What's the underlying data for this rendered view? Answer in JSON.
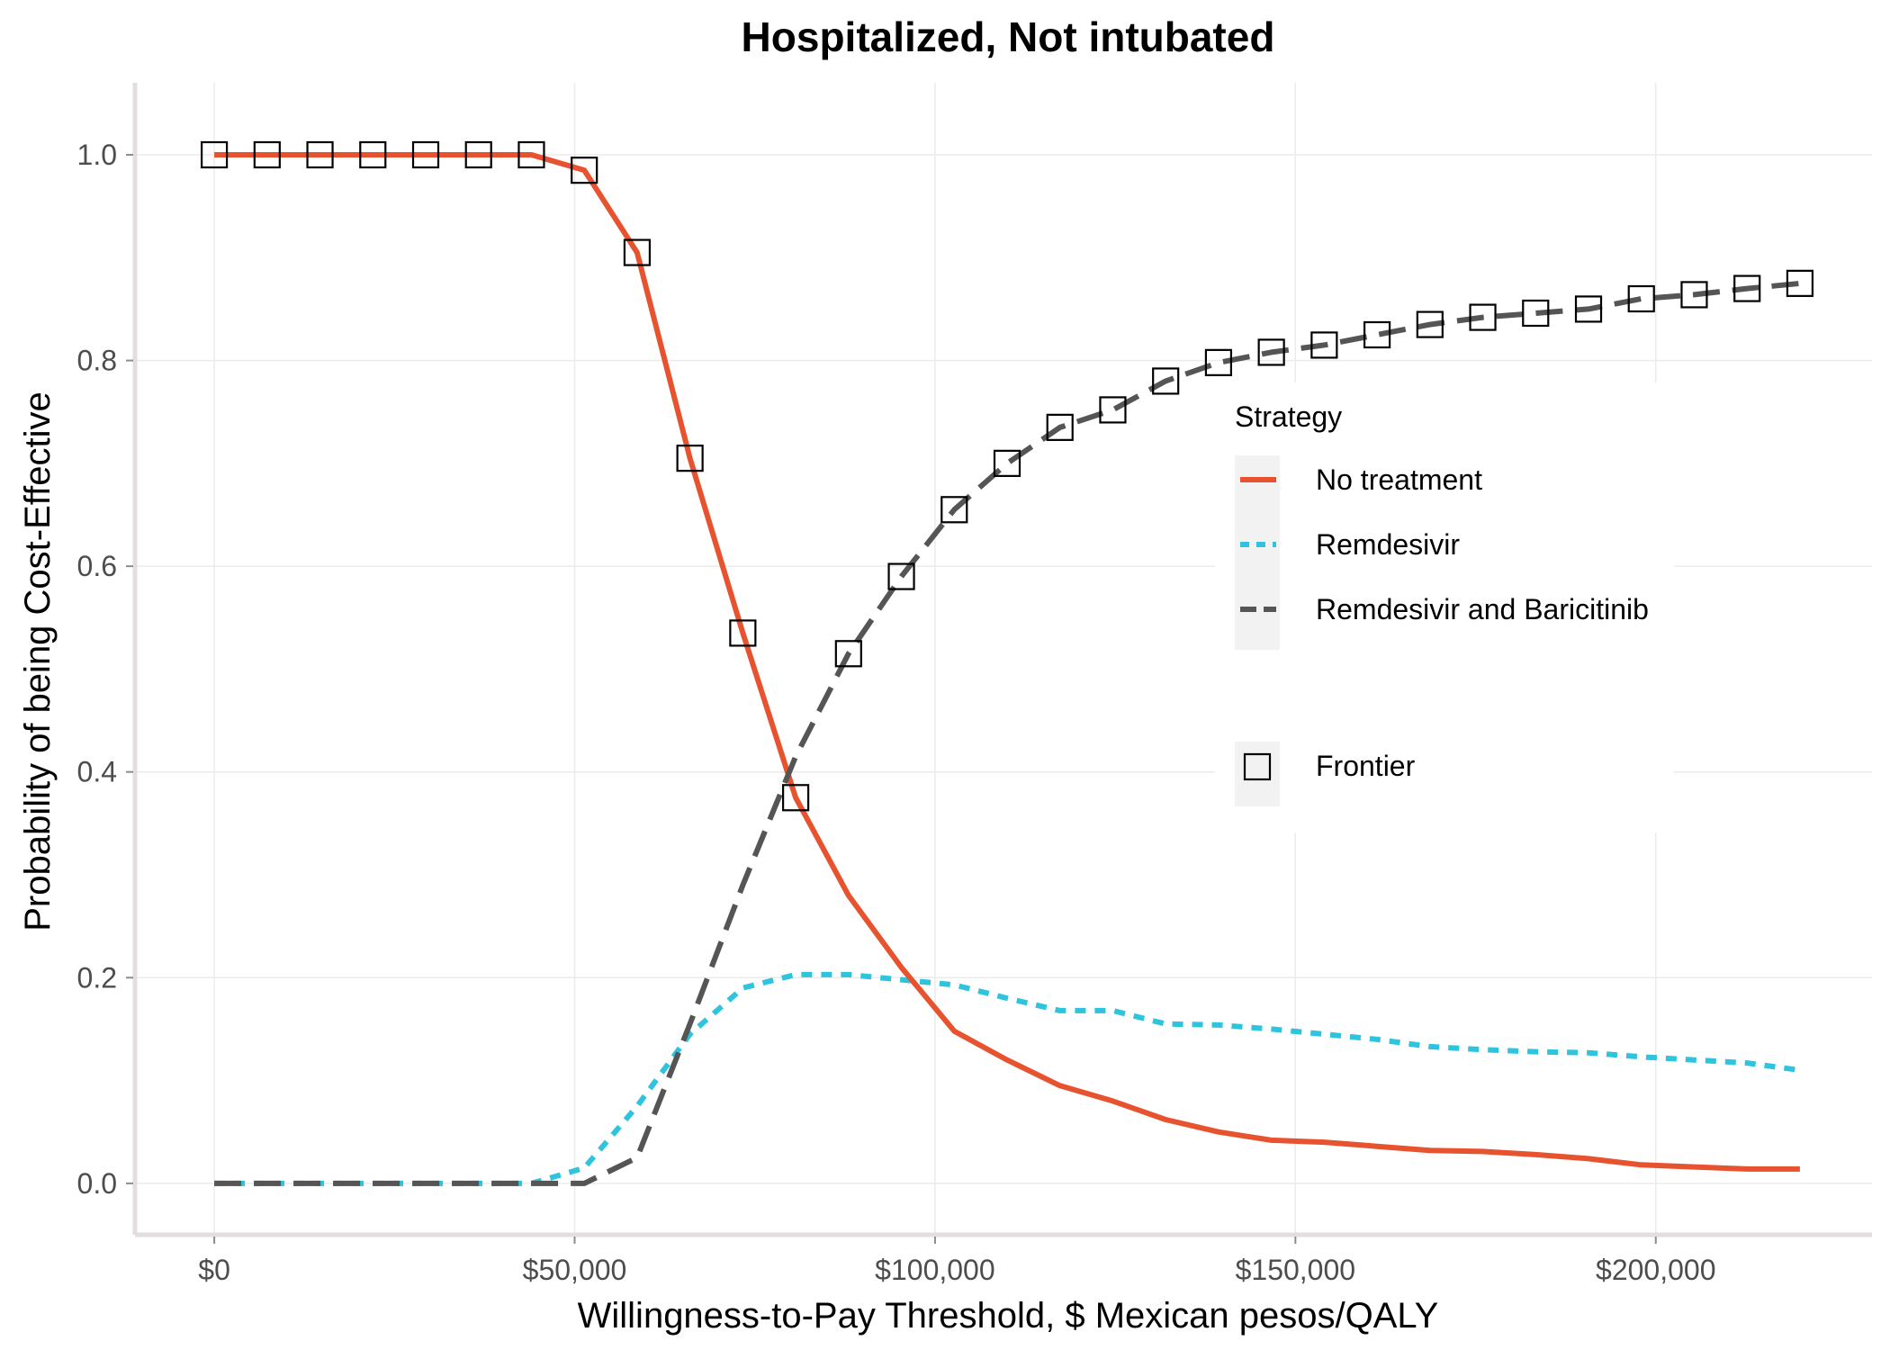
{
  "chart_data": {
    "type": "line",
    "title": "Hospitalized, Not intubated",
    "xlabel": "Willingness-to-Pay Threshold, $ Mexican pesos/QALY",
    "ylabel": "Probability of being Cost-Effective",
    "xlim": [
      -11000,
      230000
    ],
    "ylim": [
      -0.05,
      1.07
    ],
    "x_ticks": [
      0,
      50000,
      100000,
      150000,
      200000
    ],
    "x_tick_labels": [
      "$0",
      "$50,000",
      "$100,000",
      "$150,000",
      "$200,000"
    ],
    "y_ticks": [
      0,
      0.2,
      0.4,
      0.6,
      0.8,
      1.0
    ],
    "y_tick_labels": [
      "0.0",
      "0.2",
      "0.4",
      "0.6",
      "0.8",
      "1.0"
    ],
    "grid": true,
    "legend_position": "right",
    "legend_title": "Strategy",
    "x": [
      0,
      7333,
      14667,
      22000,
      29333,
      36667,
      44000,
      51333,
      58667,
      66000,
      73333,
      80667,
      88000,
      95333,
      102667,
      110000,
      117333,
      124667,
      132000,
      139333,
      146667,
      154000,
      161333,
      168667,
      176000,
      183333,
      190667,
      198000,
      205333,
      212667,
      220000
    ],
    "series": [
      {
        "name": "No treatment",
        "color": "#E8532F",
        "dash": "solid",
        "values": [
          1.0,
          1.0,
          1.0,
          1.0,
          1.0,
          1.0,
          1.0,
          0.985,
          0.905,
          0.705,
          0.535,
          0.375,
          0.28,
          0.21,
          0.148,
          0.12,
          0.095,
          0.08,
          0.062,
          0.05,
          0.042,
          0.04,
          0.036,
          0.032,
          0.031,
          0.028,
          0.024,
          0.018,
          0.016,
          0.014,
          0.014
        ]
      },
      {
        "name": "Remdesivir",
        "color": "#2EC4DD",
        "dash": "dotted",
        "values": [
          0.0,
          0.0,
          0.0,
          0.0,
          0.0,
          0.0,
          0.0,
          0.015,
          0.075,
          0.145,
          0.19,
          0.203,
          0.203,
          0.198,
          0.193,
          0.18,
          0.168,
          0.168,
          0.155,
          0.154,
          0.15,
          0.145,
          0.14,
          0.133,
          0.13,
          0.128,
          0.127,
          0.123,
          0.12,
          0.117,
          0.11
        ]
      },
      {
        "name": "Remdesivir and Baricitinib",
        "color": "#555555",
        "dash": "dashed",
        "values": [
          0.0,
          0.0,
          0.0,
          0.0,
          0.0,
          0.0,
          0.0,
          0.0,
          0.025,
          0.155,
          0.29,
          0.415,
          0.515,
          0.59,
          0.655,
          0.7,
          0.735,
          0.752,
          0.78,
          0.798,
          0.808,
          0.815,
          0.825,
          0.835,
          0.842,
          0.846,
          0.85,
          0.86,
          0.864,
          0.87,
          0.875
        ]
      }
    ],
    "frontier": {
      "name": "Frontier",
      "marker": "open-square",
      "values": [
        1.0,
        1.0,
        1.0,
        1.0,
        1.0,
        1.0,
        1.0,
        0.985,
        0.905,
        0.705,
        0.535,
        0.375,
        0.515,
        0.59,
        0.655,
        0.7,
        0.735,
        0.752,
        0.78,
        0.798,
        0.808,
        0.815,
        0.825,
        0.835,
        0.842,
        0.846,
        0.85,
        0.86,
        0.864,
        0.87,
        0.875
      ]
    }
  }
}
